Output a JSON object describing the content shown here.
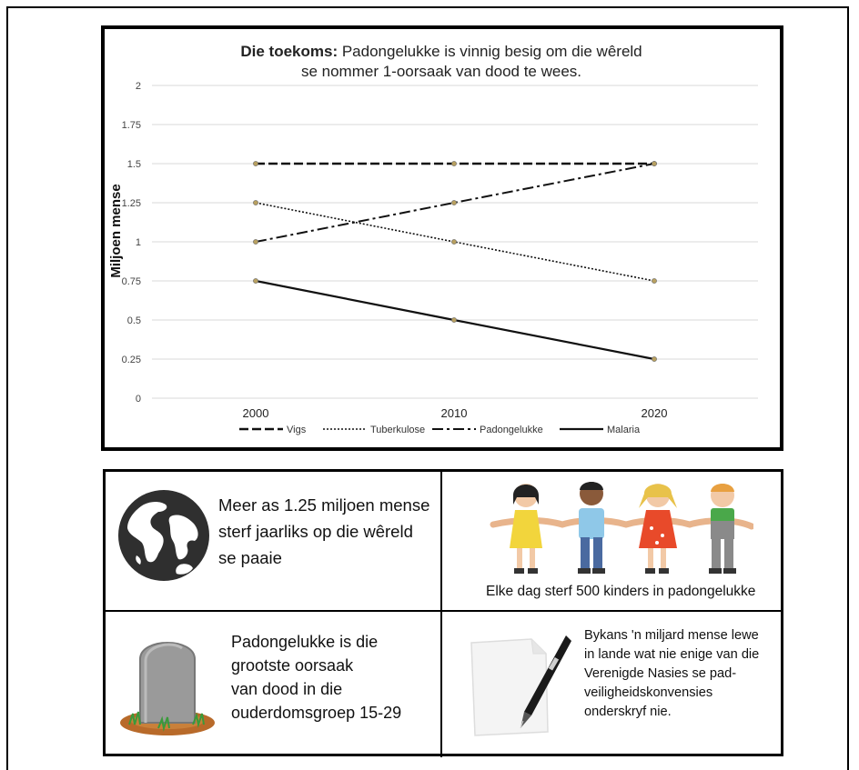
{
  "chart_data": {
    "type": "line",
    "title_bold": "Die toekoms:",
    "title_rest": " Padongelukke is vinnig besig om die wêreld",
    "title_line2": "se nommer 1-oorsaak van dood te wees.",
    "ylabel": "Miljoen mense",
    "xlabel": "",
    "x": [
      "2000",
      "2010",
      "2020"
    ],
    "ylim": [
      0,
      2
    ],
    "yticks": [
      "0",
      "0.25",
      "0.5",
      "0.75",
      "1",
      "1.25",
      "1.5",
      "1.75",
      "2"
    ],
    "grid": true,
    "legend_position": "bottom",
    "series": [
      {
        "name": "Vigs",
        "values": [
          1.5,
          1.5,
          1.5
        ],
        "style": "dashed"
      },
      {
        "name": "Tuberkulose",
        "values": [
          1.25,
          1.0,
          0.75
        ],
        "style": "dotted"
      },
      {
        "name": "Padongelukke",
        "values": [
          1.0,
          1.25,
          1.5
        ],
        "style": "dash-dot"
      },
      {
        "name": "Malaria",
        "values": [
          0.75,
          0.5,
          0.25
        ],
        "style": "solid"
      }
    ],
    "colors": {
      "line": "#111111",
      "grid": "#d9d9d9",
      "marker": "#b8a060"
    }
  },
  "facts": {
    "globe": {
      "icon": "globe-icon",
      "text": "Meer as 1.25 miljoen mense\nsterf jaarliks op die wêreld\nse paaie"
    },
    "children": {
      "icon": "children-holding-hands-icon",
      "text": "Elke dag sterf 500 kinders in padongelukke"
    },
    "grave": {
      "icon": "tombstone-icon",
      "text": "Padongelukke is die\ngrootste oorsaak\nvan dood in die\nouderdomsgroep 15-29"
    },
    "pen": {
      "icon": "pen-and-paper-icon",
      "text": "Bykans 'n miljard mense lewe\nin lande wat nie enige van die\nVerenigde Nasies se pad-\nveiligheidskonvensies\nonderskryf nie."
    }
  }
}
